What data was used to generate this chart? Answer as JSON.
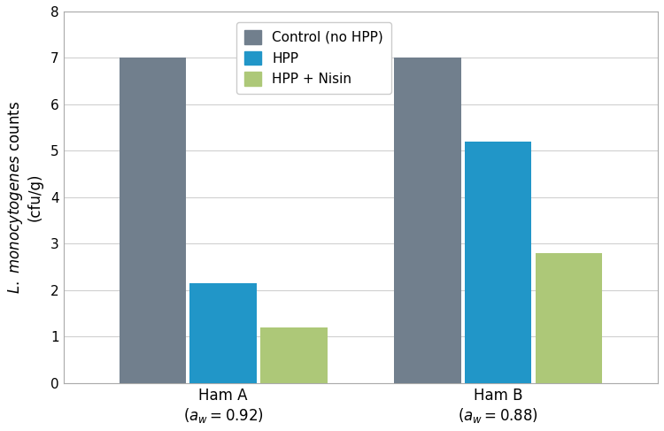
{
  "xlabel_groups": [
    "Ham A\n$(a_w = 0.92)$",
    "Ham B\n$(a_w = 0.88)$"
  ],
  "series": {
    "Control (no HPP)": [
      7.0,
      7.0
    ],
    "HPP": [
      2.15,
      5.2
    ],
    "HPP + Nisin": [
      1.2,
      2.8
    ]
  },
  "colors": {
    "Control (no HPP)": "#717f8d",
    "HPP": "#2196c8",
    "HPP + Nisin": "#adc878"
  },
  "ylim": [
    0,
    8
  ],
  "yticks": [
    0,
    1,
    2,
    3,
    4,
    5,
    6,
    7,
    8
  ],
  "bar_width": 0.18,
  "background_color": "#ffffff",
  "plot_bg_color": "#ffffff",
  "grid_color": "#d0d0d0",
  "legend_fontsize": 11,
  "ylabel_fontsize": 12,
  "tick_fontsize": 11,
  "xtick_fontsize": 12,
  "group_centers": [
    0.33,
    1.07
  ]
}
